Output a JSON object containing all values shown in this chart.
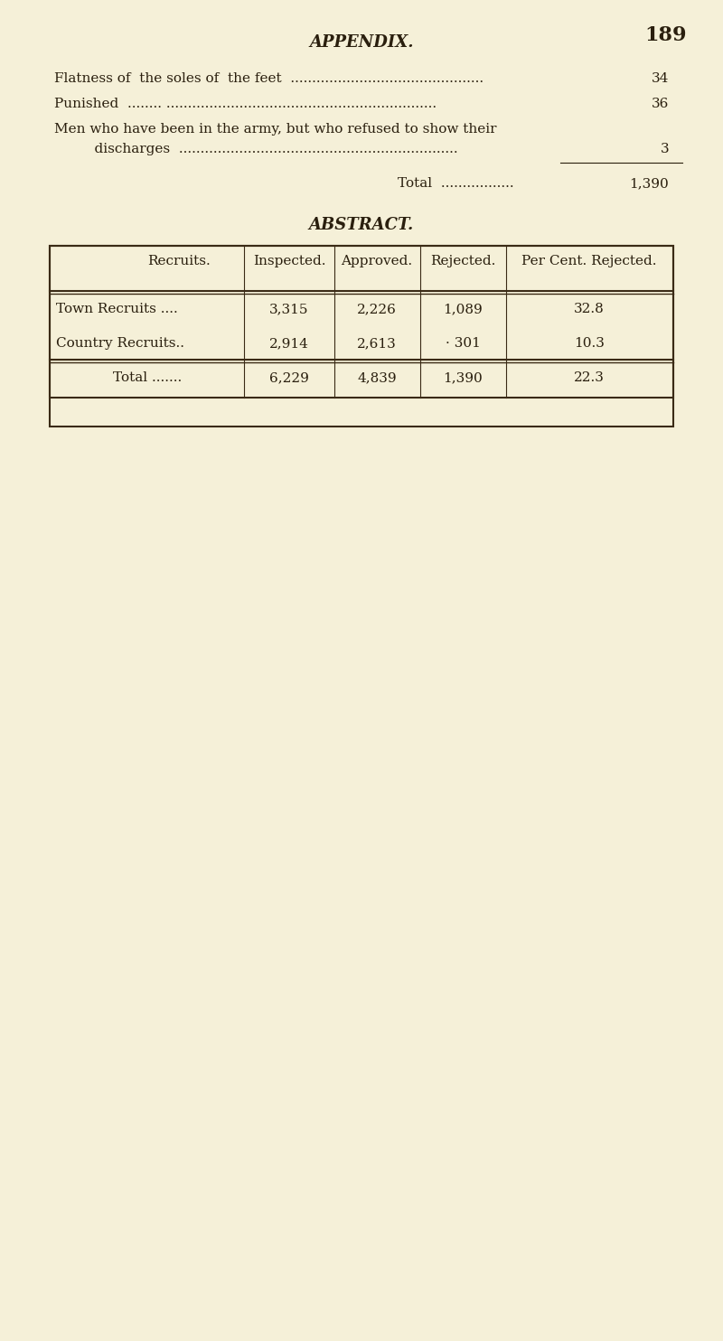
{
  "bg_color": "#f5f0d8",
  "page_number": "189",
  "header": "APPENDIX.",
  "lines": [
    {
      "text": "Flatness of the soles of the feet ........................................",
      "value": "34"
    },
    {
      "text": "Punished ........ ...............................................................",
      "value": "36"
    },
    {
      "text": "Men who have been in the army, but who refused to show their",
      "value": ""
    },
    {
      "text": "    discharges .................................................................",
      "value": "3"
    },
    {
      "text": "Total .................",
      "value": "1,390",
      "is_total": true
    }
  ],
  "abstract_title": "ABSTRACT.",
  "table_headers": [
    "Recruits.",
    "Inspected.",
    "Approved.",
    "Rejected.",
    "Per Cent. Rejected."
  ],
  "table_rows": [
    [
      "Town Recruits ....",
      "3,315",
      "2,226",
      "1,089",
      "32.8"
    ],
    [
      "Country Recruits..",
      "2,914",
      "2,613",
      "· 301",
      "10.3"
    ]
  ],
  "table_total": [
    "Total .......",
    "6,229",
    "4,839",
    "1,390",
    "22.3"
  ],
  "text_color": "#2a1f0e",
  "table_border_color": "#3a2a15",
  "font_size_header": 13,
  "font_size_page_num": 16,
  "font_size_body": 11,
  "font_size_table": 11
}
